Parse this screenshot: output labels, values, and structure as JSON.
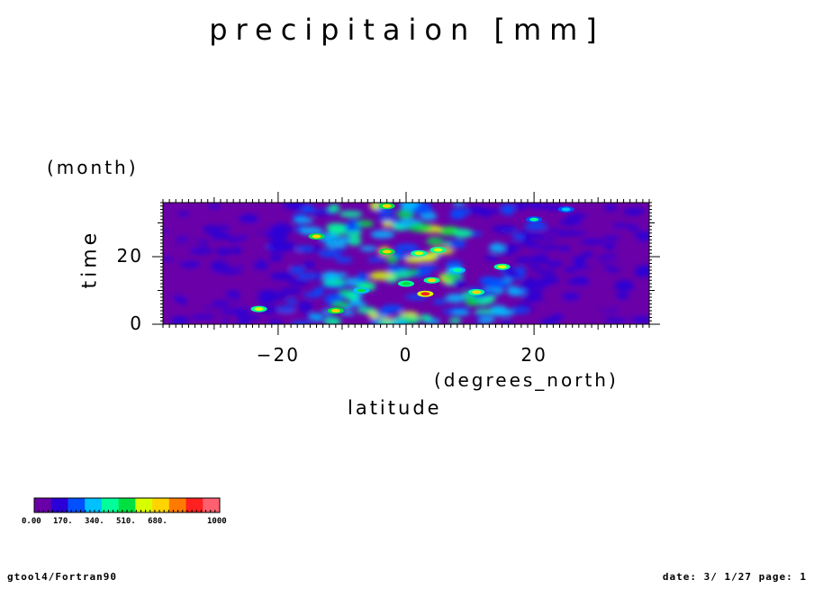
{
  "chart_data": {
    "type": "heatmap",
    "title": "precipitaion [mm]",
    "xlabel": "latitude",
    "xunit": "(degrees_north)",
    "ylabel": "time",
    "yunit": "(month)",
    "xlim": [
      -38,
      38
    ],
    "ylim": [
      0,
      36
    ],
    "x_ticks": [
      -20,
      0,
      20
    ],
    "y_ticks": [
      0,
      20
    ],
    "colorbar": {
      "min": 0,
      "max": 1000,
      "tick_labels": [
        "0.00",
        "170.",
        "340.",
        "510.",
        "680.",
        "1000"
      ],
      "colors": [
        "#6a00a8",
        "#2b00d6",
        "#0050ff",
        "#00c0ff",
        "#00ff9a",
        "#00e040",
        "#d8ff00",
        "#ffd400",
        "#ff7a00",
        "#ff2020",
        "#ff6070"
      ]
    },
    "hotspots": [
      {
        "lat": -23,
        "month": 4.5,
        "value": 620
      },
      {
        "lat": -14,
        "month": 26,
        "value": 720
      },
      {
        "lat": -11,
        "month": 4,
        "value": 700
      },
      {
        "lat": -7,
        "month": 10,
        "value": 480
      },
      {
        "lat": -3,
        "month": 21.5,
        "value": 700
      },
      {
        "lat": -3,
        "month": 35,
        "value": 720
      },
      {
        "lat": 0,
        "month": 12,
        "value": 520
      },
      {
        "lat": 2,
        "month": 21,
        "value": 560
      },
      {
        "lat": 3,
        "month": 9,
        "value": 900
      },
      {
        "lat": 4,
        "month": 13,
        "value": 640
      },
      {
        "lat": 5,
        "month": 22,
        "value": 560
      },
      {
        "lat": 8,
        "month": 16,
        "value": 420
      },
      {
        "lat": 11,
        "month": 9.5,
        "value": 640
      },
      {
        "lat": 15,
        "month": 17,
        "value": 620
      },
      {
        "lat": 20,
        "month": 31,
        "value": 380
      },
      {
        "lat": 25,
        "month": 34,
        "value": 360
      }
    ]
  },
  "footer": {
    "left": "gtool4/Fortran90",
    "right": "date: 3/ 1/27 page: 1"
  }
}
